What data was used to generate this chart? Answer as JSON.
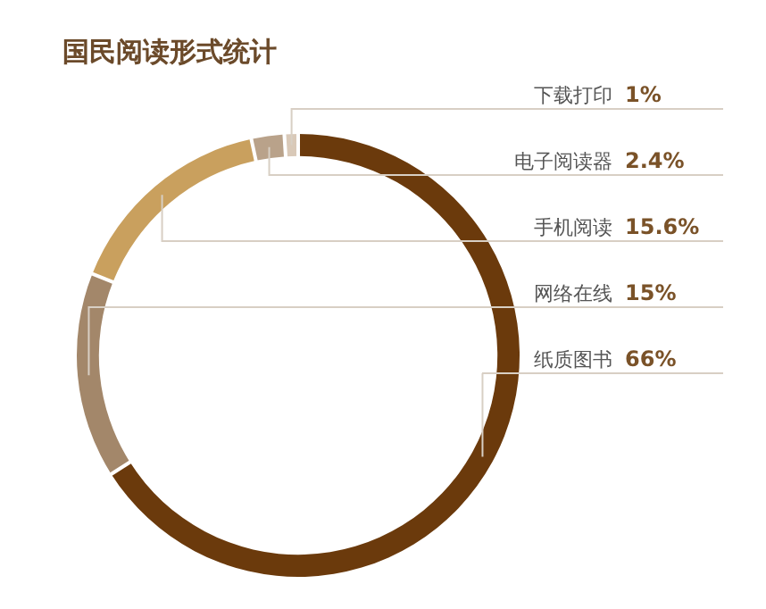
{
  "chart_data": {
    "type": "donut",
    "title": "国民阅读形式统计",
    "categories": [
      "纸质图书",
      "网络在线",
      "手机阅读",
      "电子阅读器",
      "下载打印"
    ],
    "values": [
      66,
      15,
      15.6,
      2.4,
      1
    ],
    "colors": [
      "#6b3a0c",
      "#a3876a",
      "#c9a05e",
      "#b9a28a",
      "#d9c9b8"
    ],
    "value_labels": [
      "66%",
      "15%",
      "15.6%",
      "2.4%",
      "1%"
    ]
  }
}
